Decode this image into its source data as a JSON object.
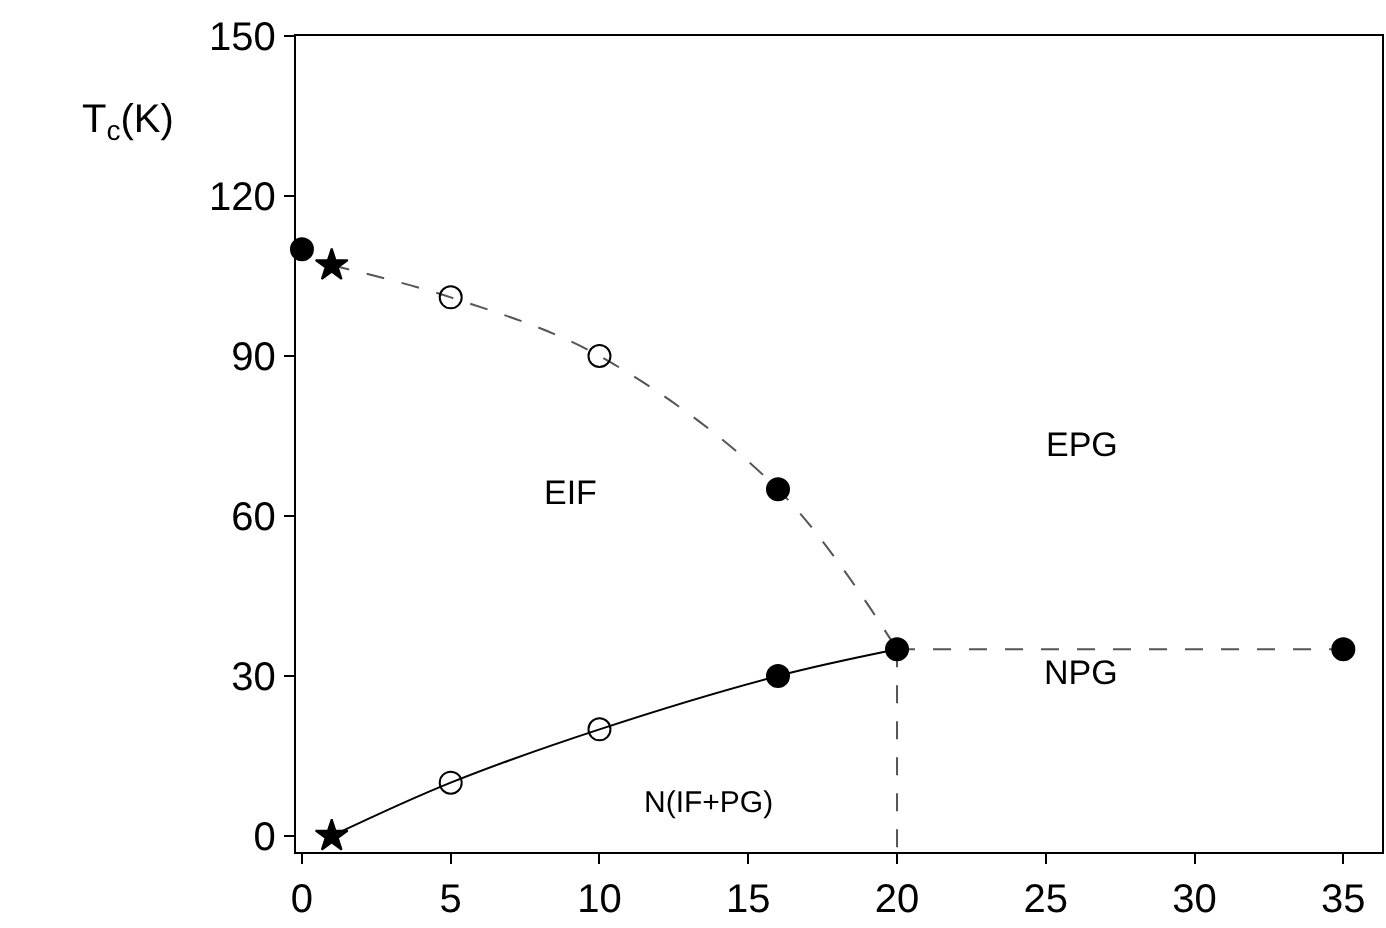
{
  "chart_data": {
    "type": "scatter",
    "ylabel": "T$_{c}$(K)",
    "xlim": [
      -0.2,
      36.3
    ],
    "ylim": [
      -3,
      150
    ],
    "xticks": [
      0,
      5,
      10,
      15,
      20,
      25,
      30,
      35
    ],
    "yticks": [
      0,
      30,
      60,
      90,
      120,
      150
    ],
    "series": [
      {
        "type": "line",
        "line_style": "dashed",
        "marker": "none",
        "color": "#555555",
        "x": [
          1,
          5,
          10,
          16,
          20
        ],
        "values": [
          107,
          101,
          90,
          65,
          35
        ]
      },
      {
        "type": "line",
        "line_style": "solid",
        "marker": "none",
        "color": "#000000",
        "x": [
          1,
          5,
          10,
          16,
          20
        ],
        "values": [
          0,
          10,
          20,
          30,
          35
        ]
      },
      {
        "type": "line",
        "line_style": "dashed",
        "marker": "none",
        "color": "#555555",
        "x": [
          20,
          35
        ],
        "values": [
          35,
          35
        ]
      },
      {
        "type": "line",
        "line_style": "dashed",
        "marker": "none",
        "color": "#555555",
        "x": [
          20,
          20
        ],
        "values": [
          35,
          -3
        ]
      },
      {
        "marker": "circle",
        "color": "#000000",
        "x": [
          0,
          16,
          20,
          35,
          16
        ],
        "values": [
          110,
          65,
          35,
          35,
          30
        ]
      },
      {
        "marker": "circle-open",
        "color": "#000000",
        "x": [
          5,
          10,
          5,
          10
        ],
        "values": [
          101,
          90,
          10,
          20
        ]
      },
      {
        "marker": "star",
        "color": "#000000",
        "x": [
          1,
          1
        ],
        "values": [
          107,
          0
        ]
      }
    ],
    "annotations": [
      "EIF",
      "EPG",
      "NPG",
      "N(IF+PG)"
    ]
  }
}
